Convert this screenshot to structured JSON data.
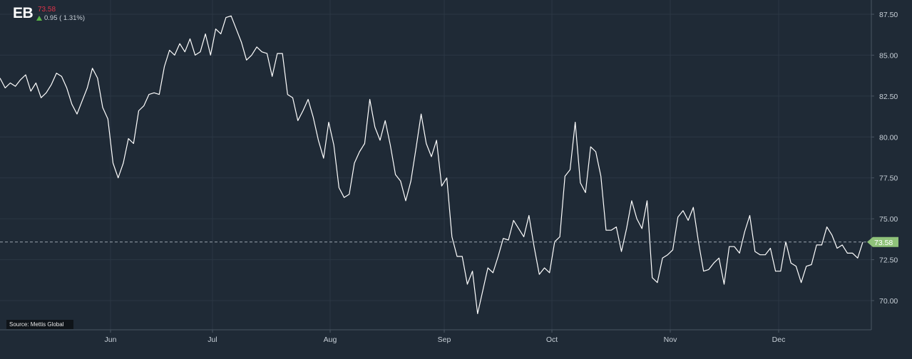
{
  "header": {
    "symbol": "EB",
    "last_price": "73.58",
    "change_text": "0.95 ( 1.31%)",
    "change_direction": "up",
    "up_color": "#59b547",
    "down_color": "#e0334a"
  },
  "source_label": "Source: Mettis Global",
  "colors": {
    "background": "#1f2a36",
    "grid": "#2b3744",
    "line": "#ffffff",
    "axis_text": "#c8d0d8",
    "price_tag": "#8fc27a"
  },
  "chart_data": {
    "type": "line",
    "title": "",
    "xlabel": "",
    "ylabel": "",
    "x_tick_labels": [
      "Jun",
      "Jul",
      "Aug",
      "Sep",
      "Oct",
      "Nov",
      "Dec"
    ],
    "y_tick_labels": [
      "70.00",
      "72.50",
      "75.00",
      "77.50",
      "80.00",
      "82.50",
      "85.00",
      "87.50"
    ],
    "ylim": [
      68.5,
      88.0
    ],
    "y_axis_position": "right",
    "grid": true,
    "last_value_marker": {
      "value": 73.58,
      "label": "73.58",
      "style": "dashed-horizontal"
    },
    "series": [
      {
        "values": [
          83.6,
          83.0,
          83.3,
          83.1,
          83.5,
          83.8,
          82.8,
          83.3,
          82.4,
          82.7,
          83.2,
          83.9,
          83.7,
          83.0,
          82.0,
          81.4,
          82.2,
          83.0,
          84.2,
          83.6,
          81.8,
          81.1,
          78.4,
          77.5,
          78.4,
          79.9,
          79.6,
          81.6,
          81.9,
          82.6,
          82.7,
          82.6,
          84.3,
          85.3,
          85.0,
          85.7,
          85.2,
          86.0,
          85.0,
          85.2,
          86.3,
          85.0,
          86.6,
          86.3,
          87.3,
          87.4,
          86.6,
          85.8,
          84.7,
          85.0,
          85.5,
          85.2,
          85.1,
          83.7,
          85.1,
          85.1,
          82.6,
          82.4,
          81.0,
          81.6,
          82.3,
          81.2,
          79.8,
          78.7,
          80.9,
          79.5,
          76.9,
          76.3,
          76.5,
          78.4,
          79.1,
          79.6,
          82.3,
          80.6,
          79.8,
          81.0,
          79.5,
          77.7,
          77.3,
          76.1,
          77.3,
          79.3,
          81.4,
          79.6,
          78.8,
          79.8,
          77.0,
          77.5,
          73.9,
          72.7,
          72.7,
          71.0,
          71.8,
          69.2,
          70.6,
          72.0,
          71.7,
          72.7,
          73.8,
          73.7,
          74.9,
          74.4,
          73.9,
          75.2,
          73.3,
          71.6,
          72.0,
          71.7,
          73.6,
          73.9,
          77.6,
          78.0,
          80.9,
          77.2,
          76.6,
          79.4,
          79.1,
          77.6,
          74.3,
          74.3,
          74.5,
          73.0,
          74.4,
          76.1,
          75.0,
          74.4,
          76.1,
          71.4,
          71.1,
          72.6,
          72.8,
          73.1,
          75.1,
          75.5,
          74.9,
          75.7,
          73.6,
          71.8,
          71.9,
          72.3,
          72.6,
          71.0,
          73.3,
          73.3,
          72.9,
          74.2,
          75.2,
          73.0,
          72.8,
          72.8,
          73.2,
          71.8,
          71.8,
          73.6,
          72.3,
          72.1,
          71.1,
          72.1,
          72.2,
          73.4,
          73.4,
          74.5,
          74.0,
          73.2,
          73.4,
          72.9,
          72.9,
          72.6,
          73.58
        ]
      }
    ]
  }
}
